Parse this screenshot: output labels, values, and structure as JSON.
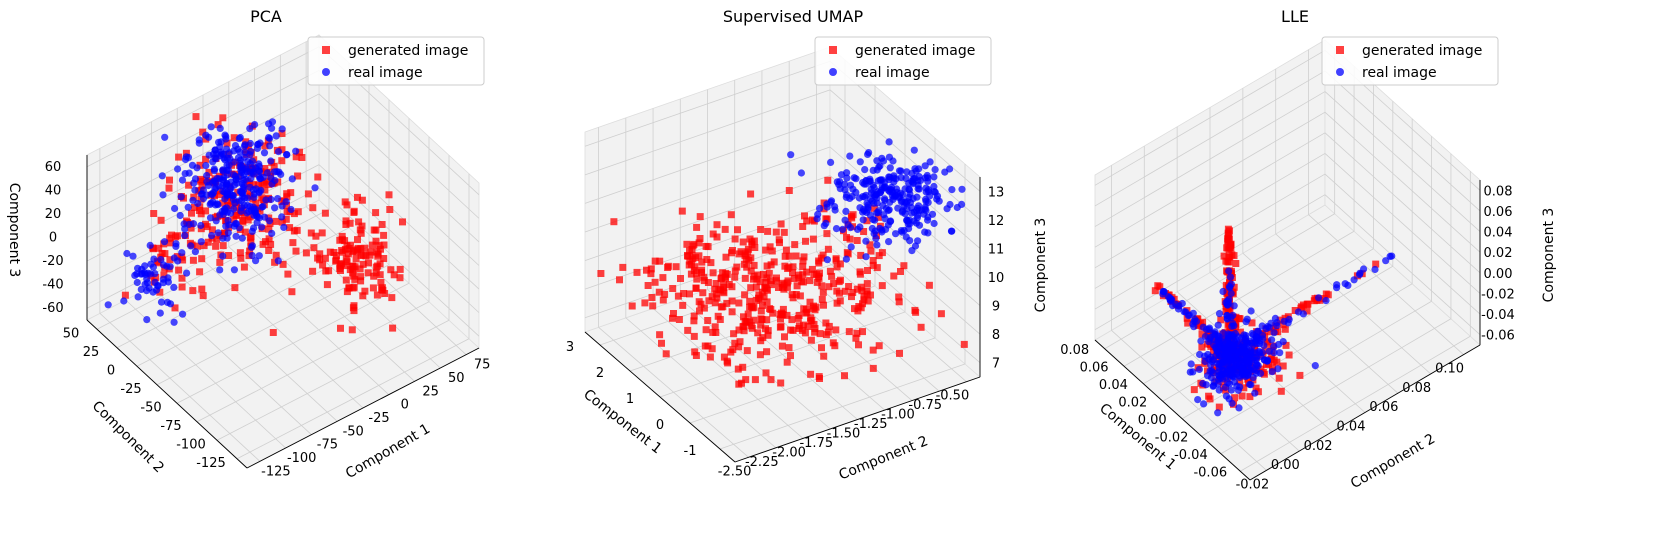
{
  "figure": {
    "description_free": true
  },
  "chart_data": [
    {
      "type": "scatter",
      "projection": "3d",
      "title": "PCA",
      "xlabel": "Component 1",
      "ylabel": "Component 2",
      "zlabel": "Component 3",
      "xlim": [
        -125,
        90
      ],
      "ylim": [
        -125,
        60
      ],
      "zlim": [
        -75,
        70
      ],
      "xticks": [
        "-125",
        "-100",
        "-75",
        "-50",
        "-25",
        "0",
        "25",
        "50",
        "75"
      ],
      "yticks": [
        "-125",
        "-100",
        "-75",
        "-50",
        "-25",
        "0",
        "25",
        "50"
      ],
      "zticks": [
        "-60",
        "-40",
        "-20",
        "0",
        "20",
        "40",
        "60"
      ],
      "legend": {
        "location": "top-right",
        "entries": [
          "generated image",
          "real image"
        ]
      },
      "series": [
        {
          "name": "generated image",
          "marker": "square",
          "color": "#ff0000",
          "clusters": [
            {
              "center": [
                -20,
                10,
                15
              ],
              "spread": [
                25,
                25,
                25
              ],
              "count": 220
            },
            {
              "center": [
                40,
                -40,
                -30
              ],
              "spread": [
                18,
                15,
                18
              ],
              "count": 130
            },
            {
              "center": [
                -70,
                40,
                -40
              ],
              "spread": [
                15,
                10,
                15
              ],
              "count": 40
            }
          ]
        },
        {
          "name": "real image",
          "marker": "circle",
          "color": "#0000ff",
          "clusters": [
            {
              "center": [
                -25,
                15,
                25
              ],
              "spread": [
                20,
                20,
                22
              ],
              "count": 300
            },
            {
              "center": [
                -75,
                40,
                -45
              ],
              "spread": [
                12,
                10,
                12
              ],
              "count": 60
            }
          ]
        }
      ]
    },
    {
      "type": "scatter",
      "projection": "3d",
      "title": "Supervised UMAP",
      "xlabel": "Component 1",
      "ylabel": "Component 2",
      "zlabel": "Component 3",
      "xlim": [
        -1.5,
        3.5
      ],
      "ylim": [
        -2.6,
        -0.45
      ],
      "zlim": [
        6.8,
        13.2
      ],
      "xticks": [
        "-1",
        "0",
        "1",
        "2",
        "3"
      ],
      "yticks": [
        "-2.50",
        "-2.25",
        "-2.00",
        "-1.75",
        "-1.50",
        "-1.25",
        "-1.00",
        "-0.75",
        "-0.50"
      ],
      "zticks": [
        "7",
        "8",
        "9",
        "10",
        "11",
        "12",
        "13"
      ],
      "legend": {
        "location": "top-right",
        "entries": [
          "generated image",
          "real image"
        ]
      },
      "series": [
        {
          "name": "generated image",
          "marker": "square",
          "color": "#ff0000",
          "clusters": [
            {
              "center": [
                1.4,
                -1.55,
                8.6
              ],
              "spread": [
                1.3,
                0.55,
                0.6
              ],
              "count": 520
            }
          ]
        },
        {
          "name": "real image",
          "marker": "circle",
          "color": "#0000ff",
          "clusters": [
            {
              "center": [
                -0.3,
                -0.9,
                12.0
              ],
              "spread": [
                0.6,
                0.25,
                0.45
              ],
              "count": 300
            }
          ]
        }
      ]
    },
    {
      "type": "scatter",
      "projection": "3d",
      "title": "LLE",
      "xlabel": "Component 1",
      "ylabel": "Component 2",
      "zlabel": "Component 3",
      "xlim": [
        -0.07,
        0.085
      ],
      "ylim": [
        -0.03,
        0.11
      ],
      "zlim": [
        -0.065,
        0.095
      ],
      "xticks": [
        "-0.06",
        "-0.04",
        "-0.02",
        "0.00",
        "0.02",
        "0.04",
        "0.06",
        "0.08"
      ],
      "yticks": [
        "-0.02",
        "0.00",
        "0.02",
        "0.04",
        "0.06",
        "0.08",
        "0.10"
      ],
      "zticks": [
        "-0.06",
        "-0.04",
        "-0.02",
        "0.00",
        "0.02",
        "0.04",
        "0.06",
        "0.08"
      ],
      "legend": {
        "location": "top-right",
        "entries": [
          "generated image",
          "real image"
        ]
      },
      "series": [
        {
          "name": "generated image",
          "marker": "square",
          "color": "#ff0000",
          "arms": [
            {
              "from": [
                0.0,
                0.0,
                -0.03
              ],
              "to": [
                0.0,
                0.0,
                0.09
              ],
              "count": 120
            },
            {
              "from": [
                0.0,
                0.0,
                -0.03
              ],
              "to": [
                0.08,
                0.0,
                -0.03
              ],
              "count": 60
            },
            {
              "from": [
                0.0,
                0.0,
                -0.03
              ],
              "to": [
                0.0,
                0.1,
                -0.03
              ],
              "count": 40
            }
          ],
          "core": {
            "center": [
              -0.01,
              0.0,
              -0.03
            ],
            "spread": [
              0.012,
              0.012,
              0.01
            ],
            "count": 120
          }
        },
        {
          "name": "real image",
          "marker": "circle",
          "color": "#0000ff",
          "arms": [
            {
              "from": [
                0.0,
                0.0,
                -0.03
              ],
              "to": [
                0.0,
                0.0,
                0.05
              ],
              "count": 40
            },
            {
              "from": [
                0.0,
                0.0,
                -0.03
              ],
              "to": [
                0.07,
                0.0,
                -0.03
              ],
              "count": 60
            },
            {
              "from": [
                0.0,
                0.0,
                -0.03
              ],
              "to": [
                0.0,
                0.1,
                -0.03
              ],
              "count": 40
            }
          ],
          "core": {
            "center": [
              -0.01,
              0.0,
              -0.03
            ],
            "spread": [
              0.01,
              0.01,
              0.008
            ],
            "count": 260
          }
        }
      ]
    }
  ]
}
